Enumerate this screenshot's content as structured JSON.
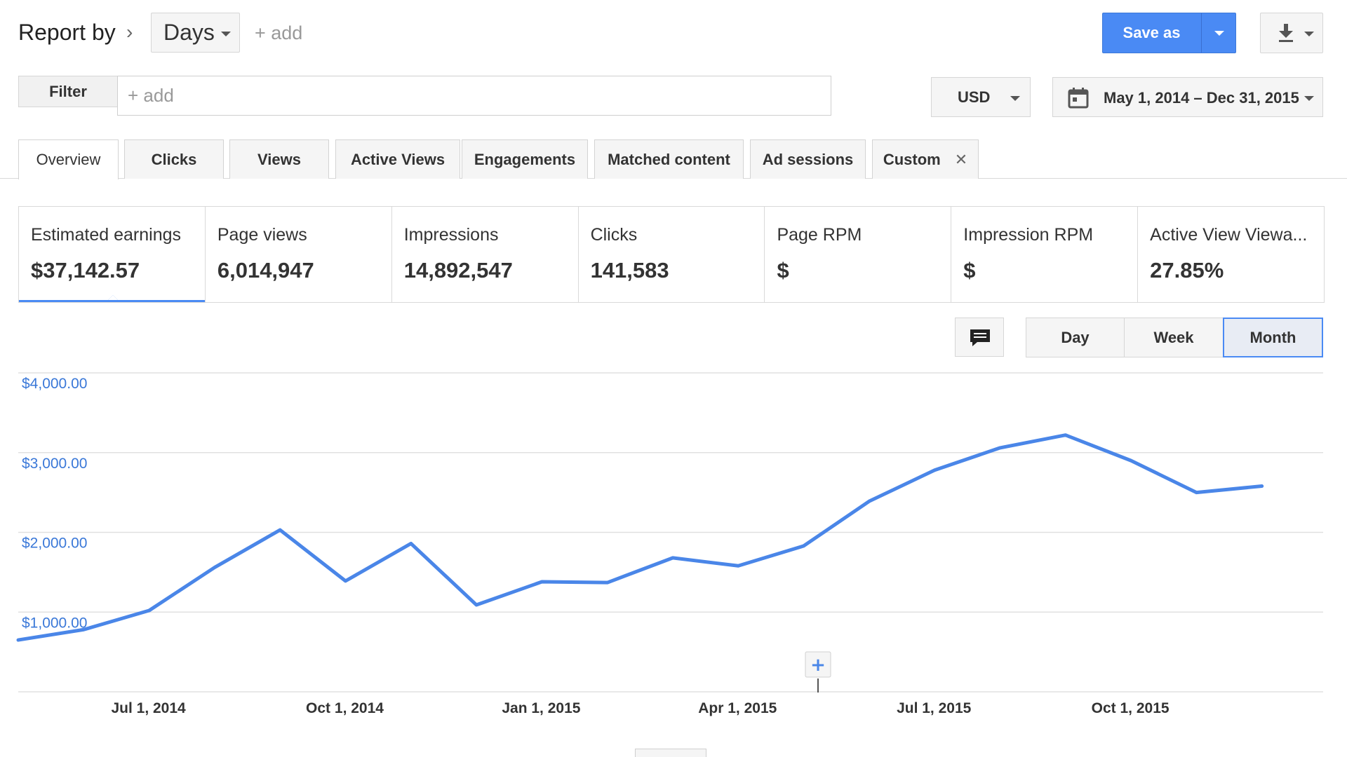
{
  "header": {
    "report_by": "Report by",
    "dimension": "Days",
    "add_label": "+ add",
    "save_as": "Save as"
  },
  "filter": {
    "label": "Filter",
    "placeholder": "+ add"
  },
  "currency": "USD",
  "date_range": "May 1, 2014 – Dec 31, 2015",
  "tabs": [
    {
      "label": "Overview"
    },
    {
      "label": "Clicks"
    },
    {
      "label": "Views"
    },
    {
      "label": "Active Views"
    },
    {
      "label": "Engagements"
    },
    {
      "label": "Matched content"
    },
    {
      "label": "Ad sessions"
    },
    {
      "label": "Custom"
    }
  ],
  "metrics": [
    {
      "label": "Estimated earnings",
      "value": "$37,142.57"
    },
    {
      "label": "Page views",
      "value": "6,014,947"
    },
    {
      "label": "Impressions",
      "value": "14,892,547"
    },
    {
      "label": "Clicks",
      "value": "141,583"
    },
    {
      "label": "Page RPM",
      "value": "$"
    },
    {
      "label": "Impression RPM",
      "value": "$"
    },
    {
      "label": "Active View Viewa...",
      "value": "27.85%"
    }
  ],
  "granularity": {
    "options": [
      "Day",
      "Week",
      "Month"
    ],
    "selected": "Month"
  },
  "chart_data": {
    "type": "line",
    "y_ticks": [
      "$4,000.00",
      "$3,000.00",
      "$2,000.00",
      "$1,000.00"
    ],
    "x_ticks": [
      "Jul 1, 2014",
      "Oct 1, 2014",
      "Jan 1, 2015",
      "Apr 1, 2015",
      "Jul 1, 2015",
      "Oct 1, 2015"
    ],
    "ylim": [
      0,
      4000
    ],
    "grid": true,
    "series": [
      {
        "color": "#4a86e8",
        "values": [
          650,
          780,
          1020,
          1560,
          2030,
          1390,
          1860,
          1090,
          1380,
          1370,
          1680,
          1580,
          1830,
          2390,
          2780,
          3060,
          3220,
          2900,
          2500,
          2580
        ]
      }
    ]
  },
  "colors": {
    "accent": "#4a8af4",
    "line": "#4a86e8",
    "axis_label": "#3a78d8"
  }
}
